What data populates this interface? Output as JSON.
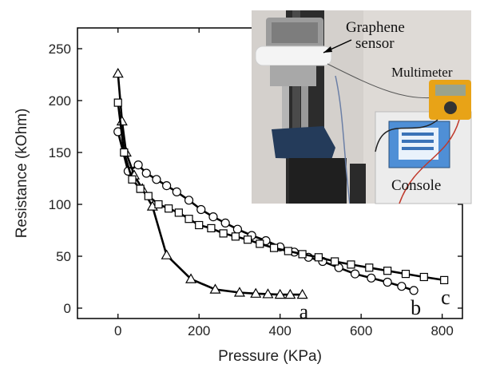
{
  "chart_data": {
    "type": "line",
    "xlabel": "Pressure (KPa)",
    "ylabel": "Resistance (kOhm)",
    "xlim": [
      -100,
      850
    ],
    "ylim": [
      -10,
      270
    ],
    "xticks": [
      0,
      200,
      400,
      600,
      800
    ],
    "yticks": [
      0,
      50,
      100,
      150,
      200,
      250
    ],
    "grid": false,
    "series": [
      {
        "name": "a",
        "marker": "triangle",
        "x": [
          0,
          10,
          20,
          40,
          60,
          85,
          120,
          180,
          240,
          300,
          340,
          370,
          400,
          425,
          455
        ],
        "y": [
          226,
          180,
          150,
          128,
          115,
          98,
          51,
          28,
          18,
          15,
          14,
          13.5,
          13,
          13,
          13
        ]
      },
      {
        "name": "b",
        "marker": "circle",
        "x": [
          0,
          25,
          50,
          70,
          95,
          120,
          145,
          175,
          205,
          235,
          265,
          295,
          330,
          365,
          400,
          435,
          470,
          505,
          545,
          585,
          625,
          665,
          700,
          730
        ],
        "y": [
          170,
          132,
          138,
          130,
          124,
          118,
          112,
          104,
          95,
          88,
          82,
          76,
          70,
          65,
          59,
          54,
          49,
          45,
          39,
          33,
          29,
          25,
          21,
          17
        ]
      },
      {
        "name": "c",
        "marker": "square",
        "x": [
          0,
          15,
          35,
          55,
          75,
          100,
          125,
          150,
          175,
          200,
          230,
          260,
          290,
          320,
          350,
          385,
          420,
          455,
          495,
          535,
          575,
          620,
          665,
          710,
          755,
          805
        ],
        "y": [
          198,
          150,
          124,
          115,
          108,
          100,
          96,
          92,
          86,
          80,
          77,
          72,
          69,
          66,
          62,
          58,
          55,
          52,
          49,
          45,
          42,
          39,
          36,
          33,
          30,
          27
        ]
      }
    ],
    "inset_photo_labels": {
      "sensor": [
        "Graphene",
        "sensor"
      ],
      "multimeter": "Multimeter",
      "console": "Console"
    }
  }
}
